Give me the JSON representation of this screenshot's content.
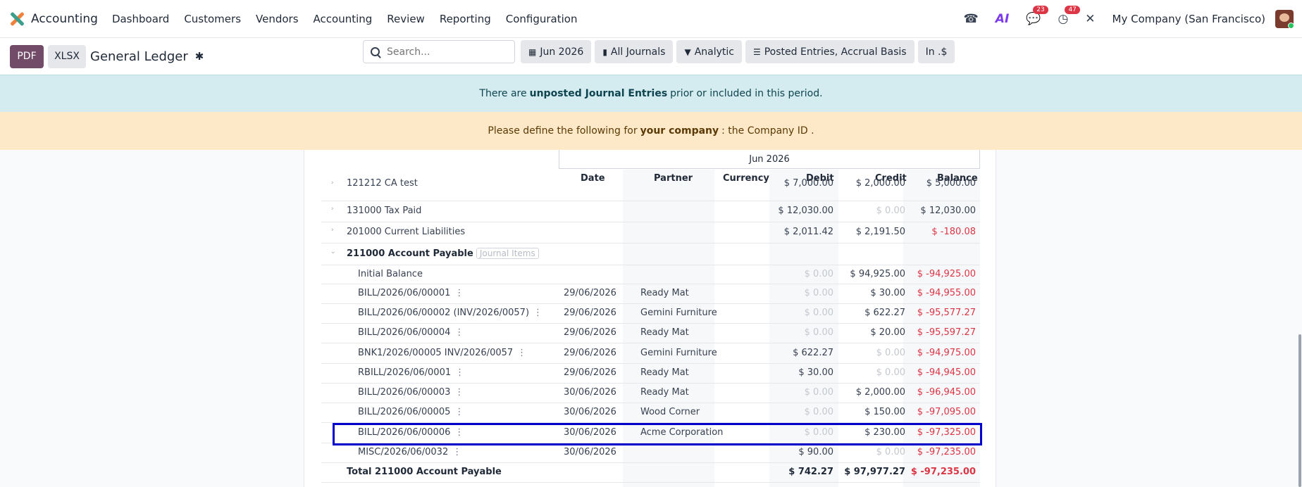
{
  "topbar": {
    "app_title": "Accounting",
    "menu": [
      "Dashboard",
      "Customers",
      "Vendors",
      "Accounting",
      "Review",
      "Reporting",
      "Configuration"
    ],
    "messages_count": "23",
    "activities_count": "47",
    "company": "My Company (San Francisco)"
  },
  "control": {
    "pdf_label": "PDF",
    "xlsx_label": "XLSX",
    "report_title": "General Ledger",
    "search_placeholder": "Search...",
    "filters": [
      "Jun 2026",
      "All Journals",
      "Analytic",
      "Posted Entries, Accrual Basis",
      "In .$"
    ]
  },
  "alerts": {
    "info_prefix": "There are",
    "info_bold": "unposted Journal Entries",
    "info_suffix": "prior or included in this period.",
    "warn_prefix": "Please define the following for",
    "warn_bold": "your company",
    "warn_suffix": ": the Company ID ."
  },
  "table": {
    "period": "Jun 2026",
    "columns": [
      "Date",
      "Partner",
      "Currency",
      "Debit",
      "Credit",
      "Balance"
    ],
    "accounts": [
      {
        "name": "121212 CA test",
        "debit": "$ 7,000.00",
        "credit": "$ 2,000.00",
        "balance": "$ 5,000.00"
      },
      {
        "name": "131000 Tax Paid",
        "debit": "$ 12,030.00",
        "credit": "$ 0.00",
        "balance": "$ 12,030.00"
      },
      {
        "name": "201000 Current Liabilities",
        "debit": "$ 2,011.42",
        "credit": "$ 2,191.50",
        "balance": "$ -180.08"
      }
    ],
    "expanded_account": {
      "name": "211000 Account Payable",
      "badge": "Journal Items"
    },
    "initial_balance": {
      "label": "Initial Balance",
      "debit": "$ 0.00",
      "credit": "$ 94,925.00",
      "balance": "$ -94,925.00"
    },
    "lines": [
      {
        "ref": "BILL/2026/06/00001",
        "date": "29/06/2026",
        "partner": "Ready Mat",
        "debit": "$ 0.00",
        "credit": "$ 30.00",
        "balance": "$ -94,955.00"
      },
      {
        "ref": "BILL/2026/06/00002 (INV/2026/0057)",
        "date": "29/06/2026",
        "partner": "Gemini Furniture",
        "debit": "$ 0.00",
        "credit": "$ 622.27",
        "balance": "$ -95,577.27"
      },
      {
        "ref": "BILL/2026/06/00004",
        "date": "29/06/2026",
        "partner": "Ready Mat",
        "debit": "$ 0.00",
        "credit": "$ 20.00",
        "balance": "$ -95,597.27"
      },
      {
        "ref": "BNK1/2026/00005 INV/2026/0057",
        "date": "29/06/2026",
        "partner": "Gemini Furniture",
        "debit": "$ 622.27",
        "credit": "$ 0.00",
        "balance": "$ -94,975.00"
      },
      {
        "ref": "RBILL/2026/06/0001",
        "date": "29/06/2026",
        "partner": "Ready Mat",
        "debit": "$ 30.00",
        "credit": "$ 0.00",
        "balance": "$ -94,945.00"
      },
      {
        "ref": "BILL/2026/06/00003",
        "date": "30/06/2026",
        "partner": "Ready Mat",
        "debit": "$ 0.00",
        "credit": "$ 2,000.00",
        "balance": "$ -96,945.00"
      },
      {
        "ref": "BILL/2026/06/00005",
        "date": "30/06/2026",
        "partner": "Wood Corner",
        "debit": "$ 0.00",
        "credit": "$ 150.00",
        "balance": "$ -97,095.00"
      },
      {
        "ref": "BILL/2026/06/00006",
        "date": "30/06/2026",
        "partner": "Acme Corporation",
        "debit": "$ 0.00",
        "credit": "$ 230.00",
        "balance": "$ -97,325.00"
      },
      {
        "ref": "MISC/2026/06/0032",
        "date": "30/06/2026",
        "partner": "",
        "debit": "$ 90.00",
        "credit": "$ 0.00",
        "balance": "$ -97,235.00"
      }
    ],
    "total": {
      "label": "Total 211000 Account Payable",
      "debit": "$ 742.27",
      "credit": "$ 97,977.27",
      "balance": "$ -97,235.00"
    }
  }
}
